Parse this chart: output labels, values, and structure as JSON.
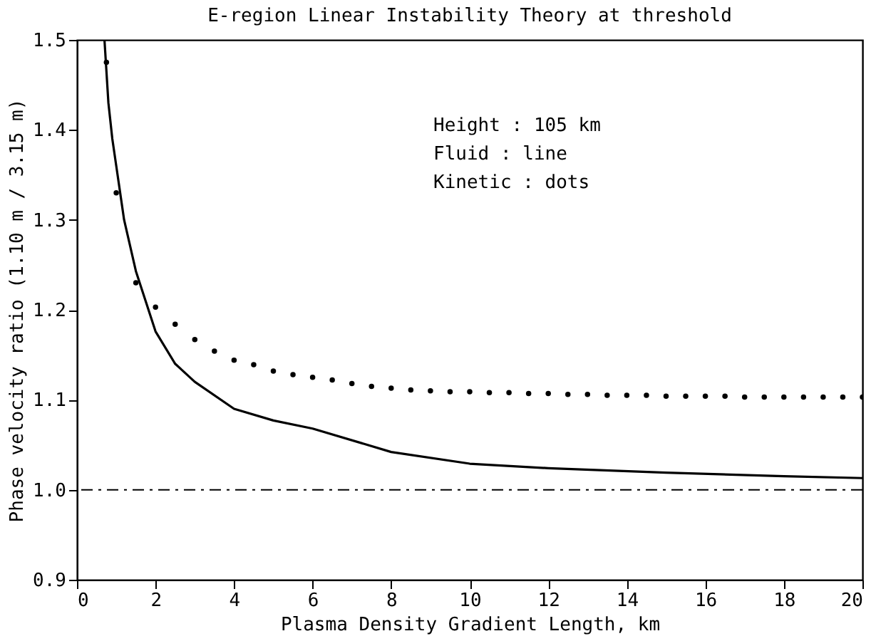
{
  "chart_data": {
    "type": "line",
    "title": "E-region Linear Instability Theory at threshold",
    "xlabel": "Plasma Density Gradient Length, km",
    "ylabel": "Phase velocity ratio (1.10 m / 3.15 m)",
    "xlim": [
      0,
      20
    ],
    "ylim": [
      0.9,
      1.5
    ],
    "xticks": [
      0,
      2,
      4,
      6,
      8,
      10,
      12,
      14,
      16,
      18,
      20
    ],
    "yticks": [
      0.9,
      {
        "value": 1.0,
        "label": "1.0"
      },
      1.1,
      1.2,
      1.3,
      1.4,
      1.5
    ],
    "grid": false,
    "series": [
      {
        "color": "#000000",
        "line_style": "solid",
        "x": [
          0.7,
          0.8,
          0.9,
          1.0,
          1.2,
          1.5,
          2.0,
          2.5,
          3.0,
          4.0,
          5.0,
          6.0,
          8.0,
          10.0,
          12.0,
          15.0,
          18.0,
          20.0
        ],
        "values": [
          1.5,
          1.43,
          1.39,
          1.36,
          1.3,
          1.243,
          1.176,
          1.14,
          1.12,
          1.09,
          1.077,
          1.068,
          1.042,
          1.029,
          1.024,
          1.019,
          1.015,
          1.013
        ]
      },
      {
        "type": "scatter",
        "color": "#000000",
        "marker": "circle",
        "x": [
          0.75,
          1.0,
          1.5,
          2.0,
          2.5,
          3.0,
          3.5,
          4.0,
          4.5,
          5.0,
          5.5,
          6.0,
          6.5,
          7.0,
          7.5,
          8.0,
          8.5,
          9.0,
          9.5,
          10.0,
          10.5,
          11.0,
          11.5,
          12.0,
          12.5,
          13.0,
          13.5,
          14.0,
          14.5,
          15.0,
          15.5,
          16.0,
          16.5,
          17.0,
          17.5,
          18.0,
          18.5,
          19.0,
          19.5,
          20.0
        ],
        "values": [
          1.475,
          1.33,
          1.23,
          1.203,
          1.184,
          1.167,
          1.154,
          1.144,
          1.139,
          1.132,
          1.128,
          1.125,
          1.122,
          1.118,
          1.115,
          1.113,
          1.111,
          1.11,
          1.109,
          1.109,
          1.108,
          1.108,
          1.107,
          1.107,
          1.106,
          1.106,
          1.105,
          1.105,
          1.105,
          1.104,
          1.104,
          1.104,
          1.104,
          1.103,
          1.103,
          1.103,
          1.103,
          1.103,
          1.103,
          1.103
        ]
      }
    ],
    "ref_lines": [
      {
        "axis": "y",
        "value": 1.0,
        "color": "#000000",
        "line_style": "dashdot"
      }
    ],
    "annotations": [
      "Height : 105 km",
      "Fluid : line",
      "Kinetic : dots"
    ]
  }
}
